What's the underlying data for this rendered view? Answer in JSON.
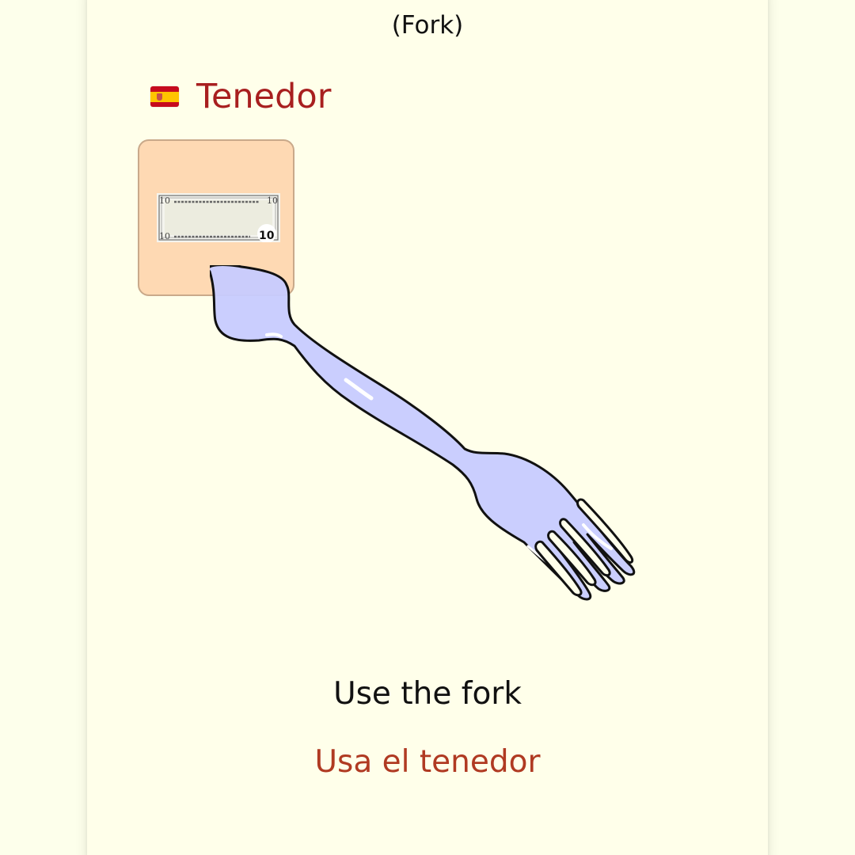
{
  "lesson": {
    "english_word": "(Fork)",
    "spanish_word": "Tenedor",
    "flag_icon": "spain-flag-icon",
    "image_icon": "ten-dollar-bill-icon",
    "illustration": "fork-icon",
    "bill_denomination": "10",
    "phrase_english": "Use the fork",
    "phrase_spanish": "Usa el tenedor"
  },
  "colors": {
    "background": "#ffffea",
    "spanish_title": "#a81f1f",
    "spanish_phrase": "#b03a22",
    "tile": "#fed9b3",
    "fork_fill": "#c7cbff"
  }
}
